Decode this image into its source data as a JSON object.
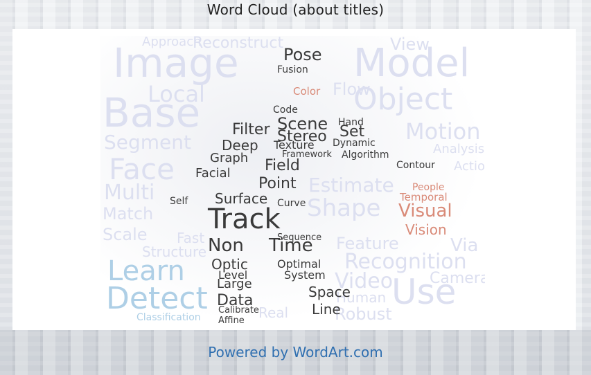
{
  "page": {
    "title": "Word Cloud (about titles)",
    "footer_link": "Powered by WordArt.com"
  },
  "colors": {
    "faint": "#dcdff0",
    "dark": "#3a3a3a",
    "light_blue": "#aecfe6",
    "salmon": "#d98a78",
    "link": "#2f6fb0"
  },
  "cloud": {
    "words": [
      {
        "text": "Image",
        "style": "faint"
      },
      {
        "text": "Model",
        "style": "faint"
      },
      {
        "text": "Base",
        "style": "faint"
      },
      {
        "text": "Object",
        "style": "faint"
      },
      {
        "text": "Local",
        "style": "faint"
      },
      {
        "text": "Face",
        "style": "faint"
      },
      {
        "text": "Segment",
        "style": "faint"
      },
      {
        "text": "Motion",
        "style": "faint"
      },
      {
        "text": "Multi",
        "style": "faint"
      },
      {
        "text": "Match",
        "style": "faint"
      },
      {
        "text": "Scale",
        "style": "faint"
      },
      {
        "text": "Estimate",
        "style": "faint"
      },
      {
        "text": "Shape",
        "style": "faint"
      },
      {
        "text": "Feature",
        "style": "faint"
      },
      {
        "text": "Recognition",
        "style": "faint"
      },
      {
        "text": "Video",
        "style": "faint"
      },
      {
        "text": "Use",
        "style": "faint"
      },
      {
        "text": "Robust",
        "style": "faint"
      },
      {
        "text": "Via",
        "style": "faint"
      },
      {
        "text": "Flow",
        "style": "faint"
      },
      {
        "text": "View",
        "style": "faint"
      },
      {
        "text": "Approach",
        "style": "faint"
      },
      {
        "text": "Reconstruct",
        "style": "faint"
      },
      {
        "text": "Structure",
        "style": "faint"
      },
      {
        "text": "Fast",
        "style": "faint"
      },
      {
        "text": "Camera",
        "style": "faint"
      },
      {
        "text": "Human",
        "style": "faint"
      },
      {
        "text": "Real",
        "style": "faint"
      },
      {
        "text": "Action",
        "style": "faint"
      },
      {
        "text": "Analysis",
        "style": "faint"
      },
      {
        "text": "Learn",
        "style": "light_blue"
      },
      {
        "text": "Detect",
        "style": "light_blue"
      },
      {
        "text": "Classification",
        "style": "light_blue"
      },
      {
        "text": "Track",
        "style": "dark"
      },
      {
        "text": "Pose",
        "style": "dark"
      },
      {
        "text": "Scene",
        "style": "dark"
      },
      {
        "text": "Stereo",
        "style": "dark"
      },
      {
        "text": "Set",
        "style": "dark"
      },
      {
        "text": "Filter",
        "style": "dark"
      },
      {
        "text": "Deep",
        "style": "dark"
      },
      {
        "text": "Texture",
        "style": "dark"
      },
      {
        "text": "Graph",
        "style": "dark"
      },
      {
        "text": "Field",
        "style": "dark"
      },
      {
        "text": "Facial",
        "style": "dark"
      },
      {
        "text": "Point",
        "style": "dark"
      },
      {
        "text": "Surface",
        "style": "dark"
      },
      {
        "text": "Non",
        "style": "dark"
      },
      {
        "text": "Time",
        "style": "dark"
      },
      {
        "text": "Optic",
        "style": "dark"
      },
      {
        "text": "Level",
        "style": "dark"
      },
      {
        "text": "Large",
        "style": "dark"
      },
      {
        "text": "Data",
        "style": "dark"
      },
      {
        "text": "System",
        "style": "dark"
      },
      {
        "text": "Space",
        "style": "dark"
      },
      {
        "text": "Line",
        "style": "dark"
      },
      {
        "text": "Optimal",
        "style": "dark"
      },
      {
        "text": "Dynamic",
        "style": "dark"
      },
      {
        "text": "Algorithm",
        "style": "dark"
      },
      {
        "text": "Contour",
        "style": "dark"
      },
      {
        "text": "Fusion",
        "style": "dark"
      },
      {
        "text": "Code",
        "style": "dark"
      },
      {
        "text": "Hand",
        "style": "dark"
      },
      {
        "text": "Framework",
        "style": "dark"
      },
      {
        "text": "Curve",
        "style": "dark"
      },
      {
        "text": "Sequence",
        "style": "dark"
      },
      {
        "text": "Calibrate",
        "style": "dark"
      },
      {
        "text": "Affine",
        "style": "dark"
      },
      {
        "text": "Self",
        "style": "dark"
      },
      {
        "text": "Visual",
        "style": "salmon"
      },
      {
        "text": "Vision",
        "style": "salmon"
      },
      {
        "text": "Temporal",
        "style": "salmon"
      },
      {
        "text": "Color",
        "style": "salmon"
      },
      {
        "text": "People",
        "style": "salmon"
      }
    ]
  }
}
